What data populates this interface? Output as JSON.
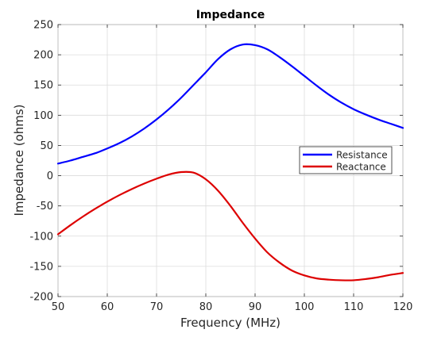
{
  "chart_data": {
    "type": "line",
    "title": "Impedance",
    "xlabel": "Frequency (MHz)",
    "ylabel": "Impedance (ohms)",
    "xlim": [
      50,
      120
    ],
    "ylim": [
      -200,
      250
    ],
    "xticks": [
      50,
      60,
      70,
      80,
      90,
      100,
      110,
      120
    ],
    "yticks": [
      -200,
      -150,
      -100,
      -50,
      0,
      50,
      100,
      150,
      200,
      250
    ],
    "grid": true,
    "legend_position": "right",
    "x": [
      50,
      52.5,
      55,
      57.5,
      60,
      62.5,
      65,
      67.5,
      70,
      72.5,
      75,
      77.5,
      80,
      82.5,
      85,
      87.5,
      90,
      92.5,
      95,
      97.5,
      100,
      102.5,
      105,
      107.5,
      110,
      112.5,
      115,
      117.5,
      120
    ],
    "series": [
      {
        "name": "Resistance",
        "color": "#0000ff",
        "values": [
          20,
          25,
          31,
          37,
          45,
          54,
          65,
          78,
          93,
          110,
          129,
          150,
          171,
          193,
          209,
          217,
          216,
          209,
          196,
          181,
          165,
          149,
          134,
          121,
          110,
          101,
          93,
          86,
          79
        ]
      },
      {
        "name": "Reactance",
        "color": "#dd0000",
        "values": [
          -97,
          -82,
          -68,
          -55,
          -43,
          -32,
          -22,
          -13,
          -5,
          2,
          6,
          5,
          -6,
          -25,
          -50,
          -78,
          -104,
          -127,
          -144,
          -157,
          -165,
          -170,
          -172,
          -173,
          -173,
          -171,
          -168,
          -164,
          -161
        ]
      }
    ]
  }
}
